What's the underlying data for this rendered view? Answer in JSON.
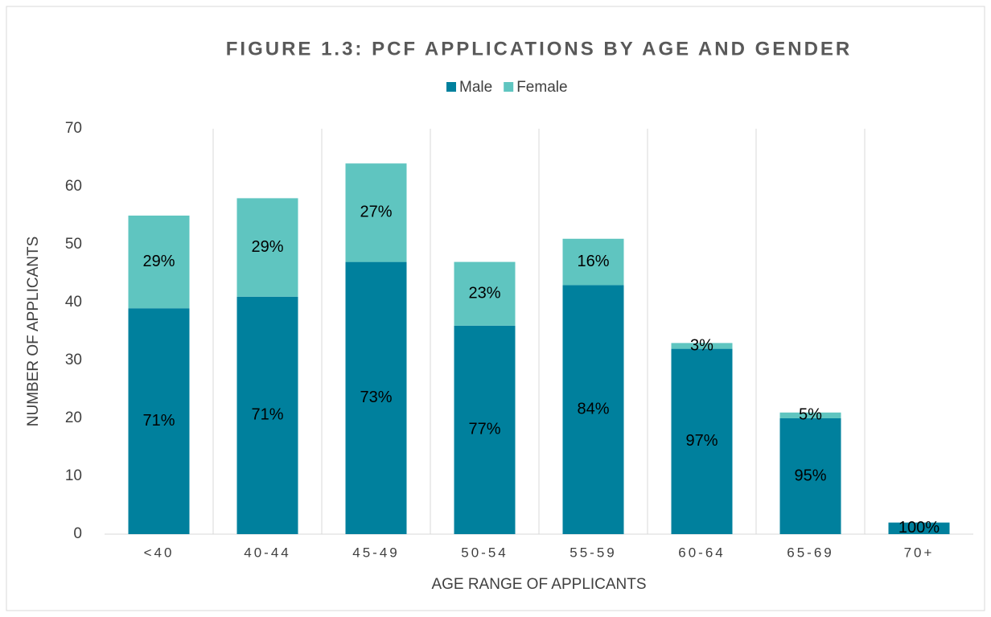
{
  "chart_data": {
    "type": "stacked_bar",
    "title": "FIGURE 1.3: PCF APPLICATIONS BY AGE AND GENDER",
    "xlabel": "AGE RANGE OF APPLICANTS",
    "ylabel": "NUMBER OF APPLICANTS",
    "categories": [
      "<40",
      "40-44",
      "45-49",
      "50-54",
      "55-59",
      "60-64",
      "65-69",
      "70+"
    ],
    "series": [
      {
        "name": "Male",
        "color": "#00809d",
        "values": [
          39,
          41,
          47,
          36,
          43,
          32,
          20,
          2
        ],
        "labels": [
          "71%",
          "71%",
          "73%",
          "77%",
          "84%",
          "97%",
          "95%",
          "100%"
        ]
      },
      {
        "name": "Female",
        "color": "#5fc5c0",
        "values": [
          16,
          17,
          17,
          11,
          8,
          1,
          1,
          0
        ],
        "labels": [
          "29%",
          "29%",
          "27%",
          "23%",
          "16%",
          "3%",
          "5%",
          null
        ]
      }
    ],
    "ylim": [
      0,
      70
    ],
    "yticks": [
      0,
      10,
      20,
      30,
      40,
      50,
      60,
      70
    ],
    "legend": "top"
  }
}
